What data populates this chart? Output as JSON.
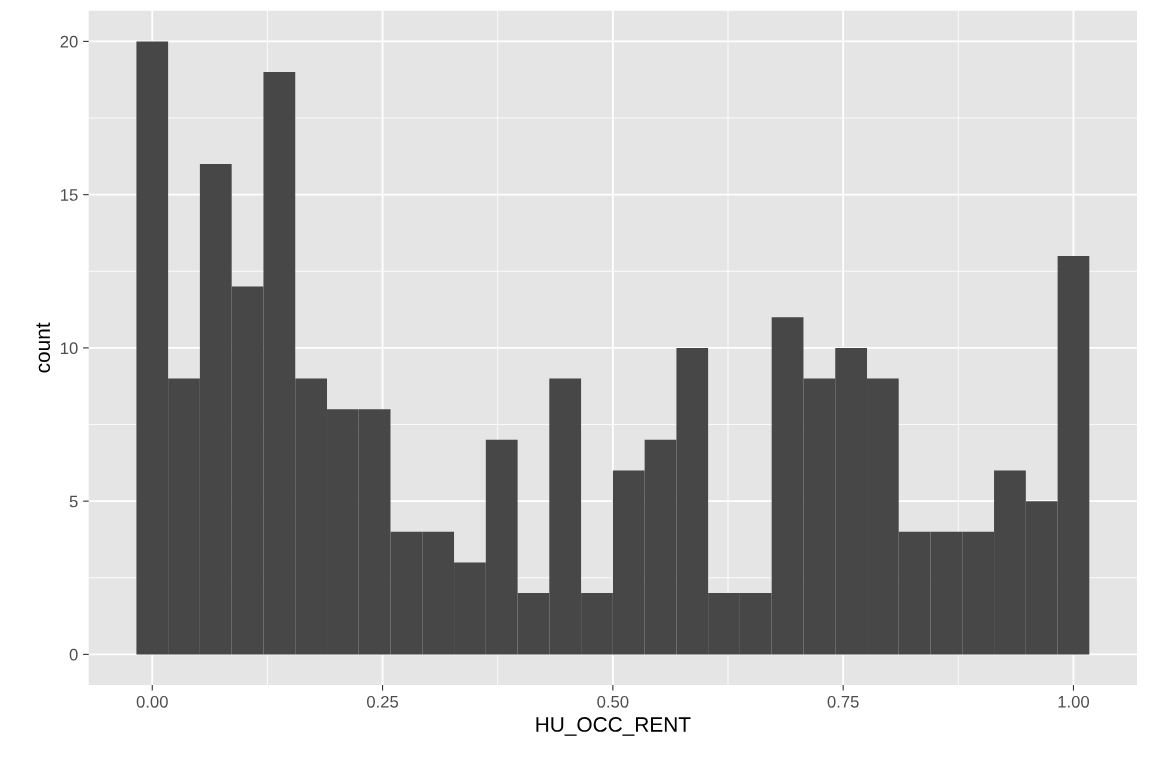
{
  "chart_data": {
    "type": "histogram",
    "xlabel": "HU_OCC_RENT",
    "ylabel": "count",
    "color": "#474747",
    "bins": [
      -0.0172,
      0.0172,
      0.0517,
      0.0862,
      0.1207,
      0.1552,
      0.1897,
      0.2241,
      0.2586,
      0.2931,
      0.3276,
      0.3621,
      0.3966,
      0.431,
      0.4655,
      0.5,
      0.5345,
      0.569,
      0.6034,
      0.6379,
      0.6724,
      0.7069,
      0.7414,
      0.7759,
      0.8103,
      0.8448,
      0.8793,
      0.9138,
      0.9483,
      0.9828,
      1.0172
    ],
    "values": [
      20,
      9,
      16,
      12,
      19,
      9,
      8,
      8,
      4,
      4,
      3,
      7,
      2,
      9,
      2,
      6,
      7,
      10,
      2,
      2,
      11,
      9,
      10,
      9,
      4,
      4,
      4,
      6,
      5,
      13
    ],
    "xlim": [
      -0.069,
      1.069
    ],
    "ylim": [
      -1,
      21
    ],
    "xticks": [
      {
        "value": 0,
        "label": "0.00"
      },
      {
        "value": 0.25,
        "label": "0.25"
      },
      {
        "value": 0.5,
        "label": "0.50"
      },
      {
        "value": 0.75,
        "label": "0.75"
      },
      {
        "value": 1,
        "label": "1.00"
      }
    ],
    "yticks": [
      0,
      5,
      10,
      15,
      20
    ],
    "grid": true
  }
}
